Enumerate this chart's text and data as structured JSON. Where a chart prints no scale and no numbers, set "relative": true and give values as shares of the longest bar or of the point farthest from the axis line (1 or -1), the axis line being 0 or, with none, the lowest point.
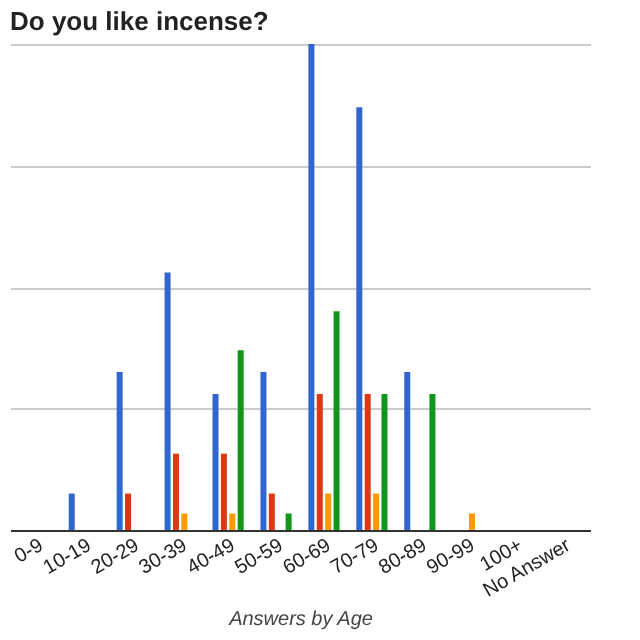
{
  "chart_data": {
    "type": "bar",
    "title": "Do you like incense?",
    "xlabel": "Answers by Age",
    "relative": true,
    "grid": "y",
    "categories": [
      "0-9",
      "10-19",
      "20-29",
      "30-39",
      "40-49",
      "50-59",
      "60-69",
      "70-79",
      "80-89",
      "90-99",
      "100+",
      "No Answer"
    ],
    "series": [
      {
        "color": "#3366cc",
        "values": [
          null,
          0.075,
          0.325,
          0.53,
          0.28,
          0.325,
          1.0,
          0.87,
          0.325,
          null,
          null,
          null
        ]
      },
      {
        "color": "#dc3912",
        "values": [
          null,
          null,
          0.075,
          0.157,
          0.157,
          0.075,
          0.28,
          0.28,
          null,
          null,
          null,
          null
        ]
      },
      {
        "color": "#ff9900",
        "values": [
          null,
          null,
          null,
          0.034,
          0.034,
          null,
          0.075,
          0.075,
          null,
          0.034,
          null,
          null
        ]
      },
      {
        "color": "#109618",
        "values": [
          null,
          null,
          null,
          null,
          0.37,
          0.034,
          0.45,
          0.28,
          0.28,
          null,
          null,
          null
        ]
      }
    ]
  }
}
